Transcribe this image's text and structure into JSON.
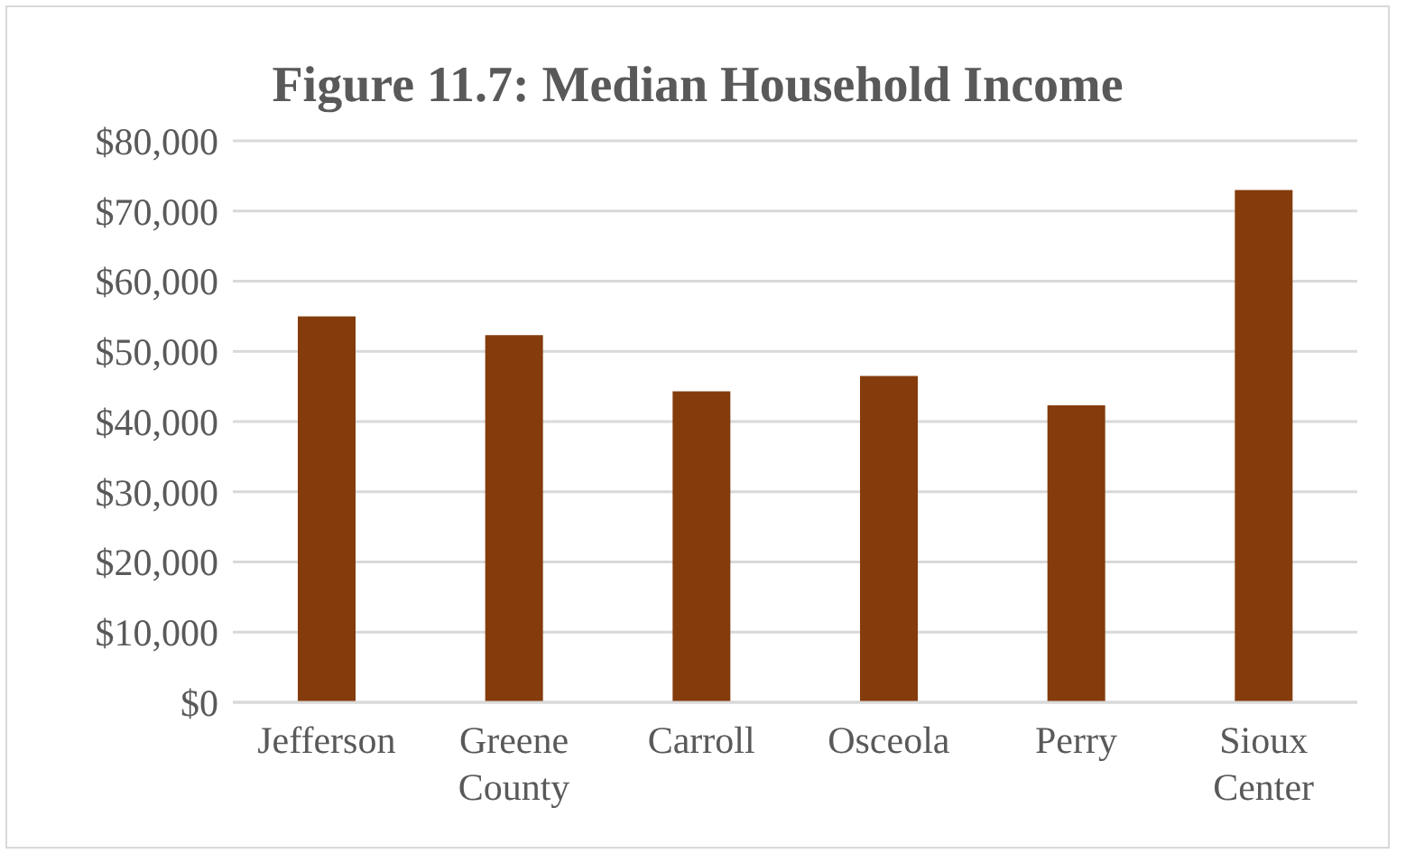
{
  "chart_data": {
    "type": "bar",
    "title": "Figure 11.7: Median Household Income",
    "categories": [
      "Jefferson",
      "Greene County",
      "Carroll",
      "Osceola",
      "Perry",
      "Sioux Center"
    ],
    "values": [
      55000,
      52300,
      44300,
      46500,
      42300,
      73000
    ],
    "color": "#843c0c",
    "ylim": [
      0,
      80000
    ],
    "yticks": [
      {
        "value": 0,
        "label": "$0"
      },
      {
        "value": 10000,
        "label": "$10,000"
      },
      {
        "value": 20000,
        "label": "$20,000"
      },
      {
        "value": 30000,
        "label": "$30,000"
      },
      {
        "value": 40000,
        "label": "$40,000"
      },
      {
        "value": 50000,
        "label": "$50,000"
      },
      {
        "value": 60000,
        "label": "$60,000"
      },
      {
        "value": 70000,
        "label": "$70,000"
      },
      {
        "value": 80000,
        "label": "$80,000"
      }
    ],
    "grid": "y",
    "legend": false
  }
}
